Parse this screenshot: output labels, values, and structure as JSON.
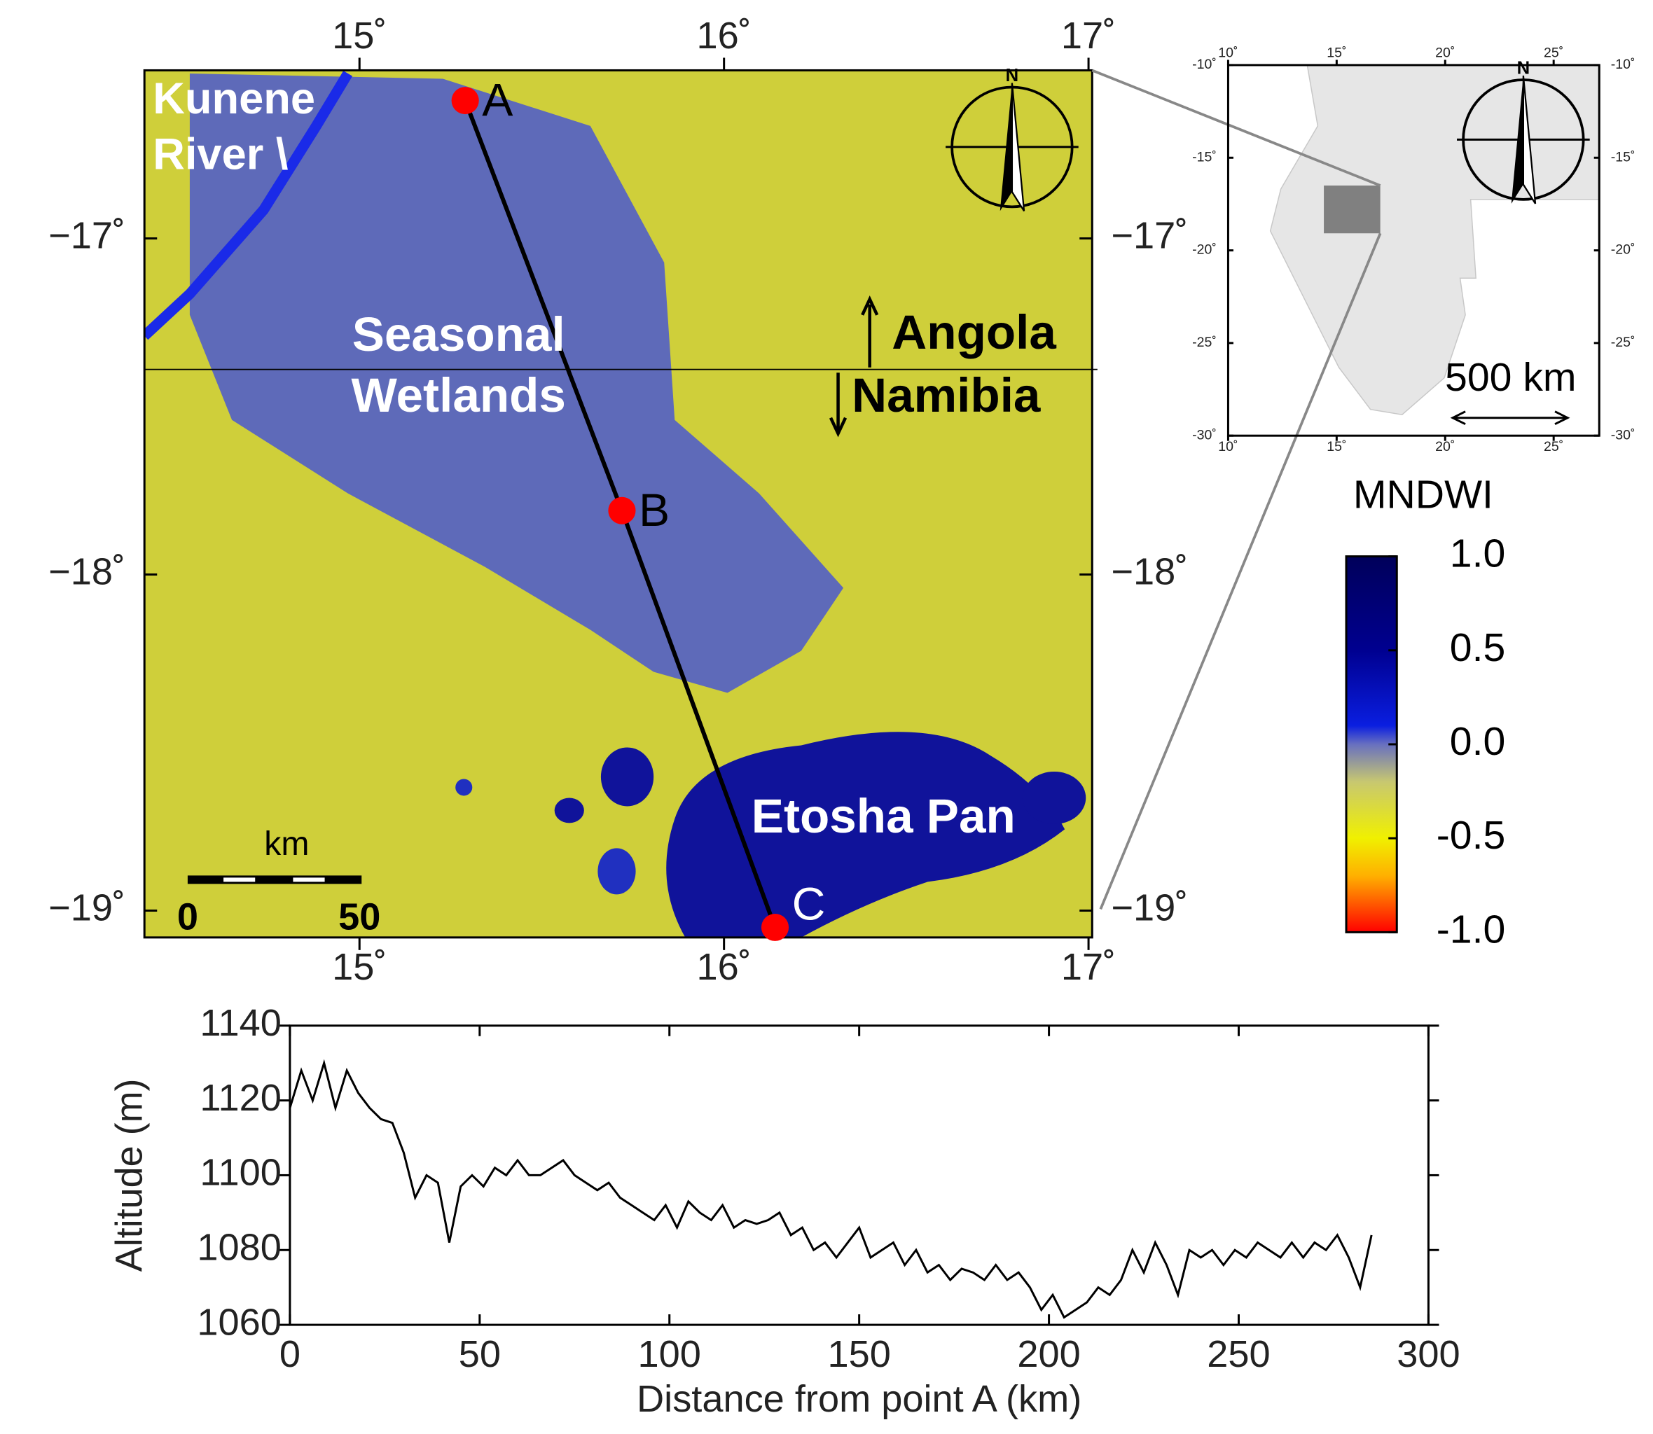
{
  "chart_data": [
    {
      "type": "map",
      "xlim": [
        14.41,
        17.01
      ],
      "ylim": [
        -19.08,
        -16.5
      ],
      "xticks": [
        {
          "value": 15,
          "label": "15˚"
        },
        {
          "value": 16,
          "label": "16˚"
        },
        {
          "value": 17,
          "label": "17˚"
        }
      ],
      "yticks": [
        {
          "value": -17,
          "label": "−17˚"
        },
        {
          "value": -18,
          "label": "−18˚"
        },
        {
          "value": -19,
          "label": "−19˚"
        }
      ],
      "points": {
        "names": [
          "A",
          "B",
          "C"
        ],
        "x": [
          15.29,
          15.72,
          16.14
        ],
        "y": [
          -16.59,
          -17.81,
          -19.05
        ],
        "color": "#ff0000"
      },
      "track_color": "#000000",
      "border_lat": -17.39,
      "labels": [
        "Kunene",
        "River \\",
        "Seasonal",
        "Wetlands",
        "Angola",
        "Namibia",
        "Etosha Pan"
      ],
      "compass": "N",
      "scale_bar": {
        "title": "km",
        "ticks": [
          "0",
          "50"
        ]
      },
      "colorbar": {
        "title": "MNDWI",
        "lim": [
          -1,
          1
        ],
        "ticks": [
          {
            "value": 1,
            "label": "1.0"
          },
          {
            "value": 0.5,
            "label": "0.5"
          },
          {
            "value": 0,
            "label": "0.0"
          },
          {
            "value": -0.5,
            "label": "-0.5"
          },
          {
            "value": -1,
            "label": "-1.0"
          }
        ]
      }
    },
    {
      "type": "map",
      "xlim": [
        10,
        27.1
      ],
      "ylim": [
        -30,
        -10
      ],
      "xticks": [
        {
          "value": 10,
          "label": "10˚"
        },
        {
          "value": 15,
          "label": "15˚"
        },
        {
          "value": 20,
          "label": "20˚"
        },
        {
          "value": 25,
          "label": "25˚"
        }
      ],
      "yticks": [
        {
          "value": -10,
          "label": "-10˚"
        },
        {
          "value": -15,
          "label": "-15˚"
        },
        {
          "value": -20,
          "label": "-20˚"
        },
        {
          "value": -25,
          "label": "-25˚"
        },
        {
          "value": -30,
          "label": "-30˚"
        }
      ],
      "compass": "N",
      "scale_label": "500 km"
    },
    {
      "type": "line",
      "x_label": "Distance from point A (km)",
      "y_label": "Altitude (m)",
      "xlim": [
        0,
        300
      ],
      "ylim": [
        1060,
        1140
      ],
      "xticks": [
        0,
        50,
        100,
        150,
        200,
        250,
        300
      ],
      "yticks": [
        1060,
        1080,
        1100,
        1120,
        1140
      ],
      "color": "#000000",
      "x": [
        0,
        3,
        6,
        9,
        12,
        15,
        18,
        21,
        24,
        27,
        30,
        33,
        36,
        39,
        42,
        45,
        48,
        51,
        54,
        57,
        60,
        63,
        66,
        69,
        72,
        75,
        78,
        81,
        84,
        87,
        90,
        93,
        96,
        99,
        102,
        105,
        108,
        111,
        114,
        117,
        120,
        123,
        126,
        129,
        132,
        135,
        138,
        141,
        144,
        147,
        150,
        153,
        156,
        159,
        162,
        165,
        168,
        171,
        174,
        177,
        180,
        183,
        186,
        189,
        192,
        195,
        198,
        201,
        204,
        207,
        210,
        213,
        216,
        219,
        222,
        225,
        228,
        231,
        234,
        237,
        240,
        243,
        246,
        249,
        252,
        255,
        258,
        261,
        264,
        267,
        270,
        273,
        276,
        279,
        282,
        285
      ],
      "values": [
        1118,
        1128,
        1120,
        1130,
        1118,
        1128,
        1122,
        1118,
        1115,
        1114,
        1106,
        1094,
        1100,
        1098,
        1082,
        1097,
        1100,
        1097,
        1102,
        1100,
        1104,
        1100,
        1100,
        1102,
        1104,
        1100,
        1098,
        1096,
        1098,
        1094,
        1092,
        1090,
        1088,
        1092,
        1086,
        1093,
        1090,
        1088,
        1092,
        1086,
        1088,
        1087,
        1088,
        1090,
        1084,
        1086,
        1080,
        1082,
        1078,
        1082,
        1086,
        1078,
        1080,
        1082,
        1076,
        1080,
        1074,
        1076,
        1072,
        1075,
        1074,
        1072,
        1076,
        1072,
        1074,
        1070,
        1064,
        1068,
        1062,
        1064,
        1066,
        1070,
        1068,
        1072,
        1080,
        1074,
        1082,
        1076,
        1068,
        1080,
        1078,
        1080,
        1076,
        1080,
        1078,
        1082,
        1080,
        1078,
        1082,
        1078,
        1082,
        1080,
        1084,
        1078,
        1070,
        1084
      ]
    }
  ]
}
